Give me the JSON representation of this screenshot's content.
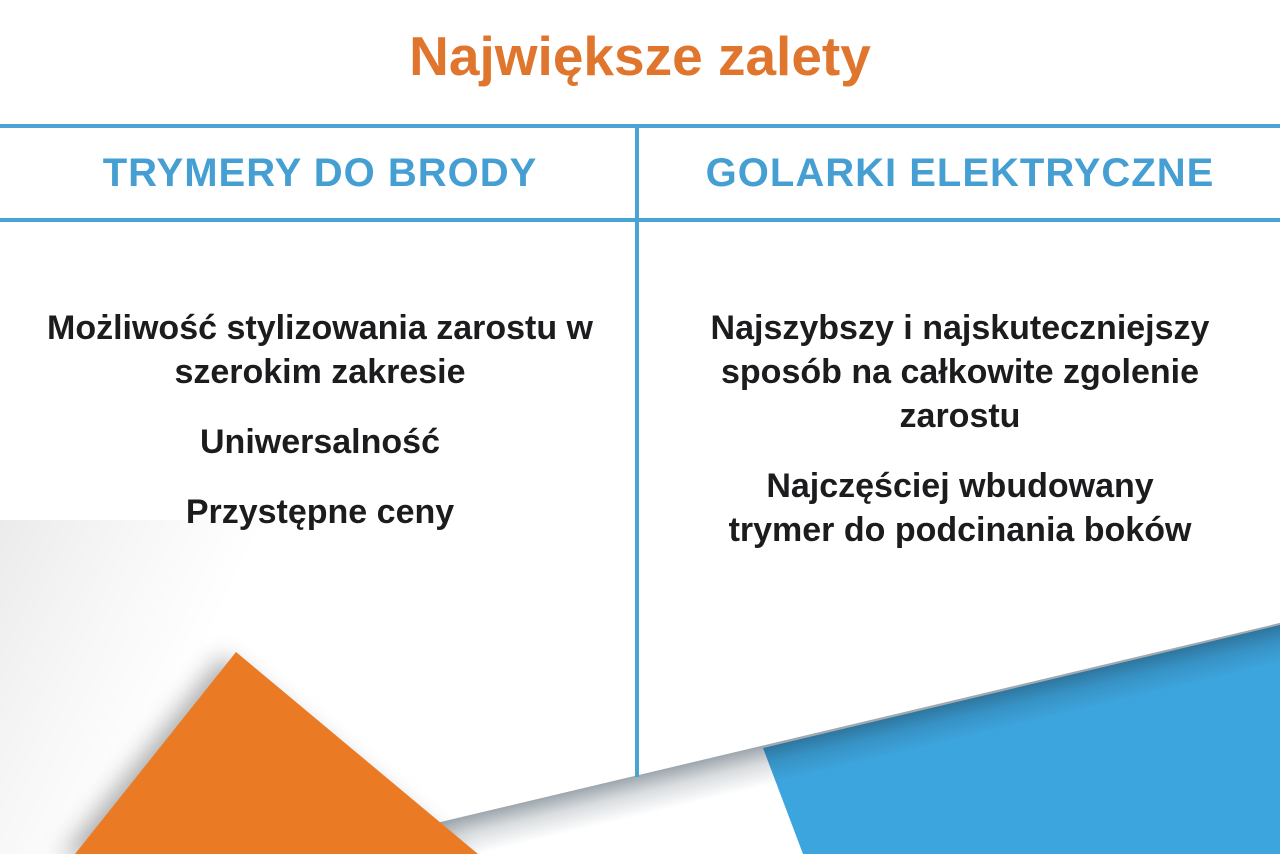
{
  "title": "Największe zalety",
  "columns": [
    {
      "header": "TRYMERY DO BRODY",
      "items": [
        [
          "Możliwość stylizowania zarostu w",
          "szerokim zakresie"
        ],
        [
          "Uniwersalność"
        ],
        [
          "Przystępne ceny"
        ]
      ]
    },
    {
      "header": "GOLARKI ELEKTRYCZNE",
      "items": [
        [
          "Najszybszy i najskuteczniejszy",
          "sposób na całkowite zgolenie",
          "zarostu"
        ],
        [
          "Najczęściej wbudowany",
          "trymer do podcinania boków"
        ]
      ]
    }
  ],
  "colors": {
    "accent_orange": "#EA7A24",
    "accent_orange_dark": "#E0752D",
    "accent_blue": "#3DA5DE",
    "header_blue": "#459FD3",
    "line_blue": "#4AA3D3",
    "text_dark": "#1C1C1E"
  }
}
